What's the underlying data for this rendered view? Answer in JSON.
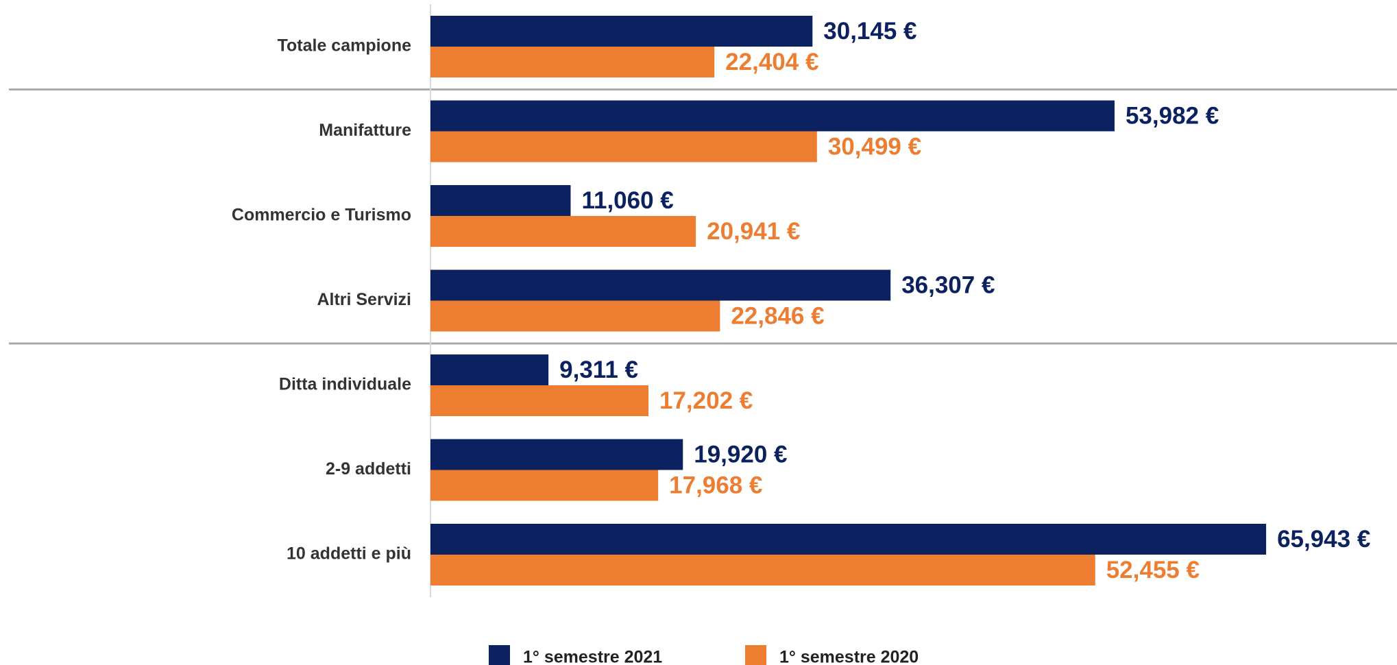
{
  "chart_data": {
    "type": "bar",
    "orientation": "horizontal",
    "categories": [
      "Totale campione",
      "Manifatture",
      "Commercio e Turismo",
      "Altri Servizi",
      "Ditta individuale",
      "2-9 addetti",
      "10 addetti e più"
    ],
    "series": [
      {
        "name": "1° semestre 2021",
        "color": "#0c2160",
        "values": [
          30145,
          53982,
          11060,
          36307,
          9311,
          19920,
          65943
        ],
        "value_labels": [
          "30,145 €",
          "53,982 €",
          "11,060 €",
          "36,307 €",
          "9,311 €",
          "19,920 €",
          "65,943 €"
        ]
      },
      {
        "name": "1° semestre 2020",
        "color": "#ed7d31",
        "values": [
          22404,
          30499,
          20941,
          22846,
          17202,
          17968,
          52455
        ],
        "value_labels": [
          "22,404 €",
          "30,499 €",
          "20,941 €",
          "22,846 €",
          "17,202 €",
          "17,968 €",
          "52,455 €"
        ]
      }
    ],
    "xlim": [
      0,
      76000
    ]
  }
}
